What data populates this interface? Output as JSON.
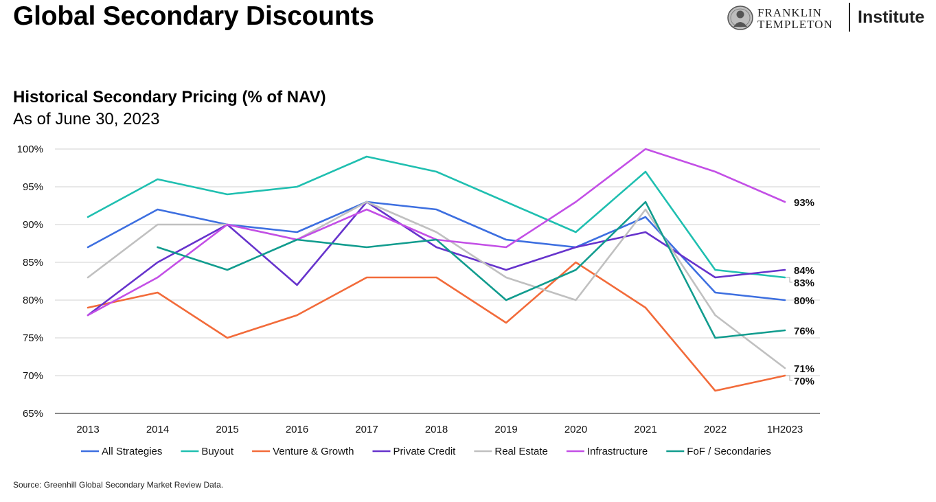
{
  "header": {
    "title": "Global Secondary Discounts",
    "logo": {
      "line1": "FRANKLIN",
      "line2": "TEMPLETON",
      "institute": "Institute"
    }
  },
  "footer": {
    "source": "Source: Greenhill Global Secondary Market Review Data."
  },
  "chart_data": {
    "type": "line",
    "title": "Historical Secondary Pricing (% of NAV)",
    "subtitle": "As of June 30, 2023",
    "xlabel": "",
    "ylabel": "",
    "categories": [
      "2013",
      "2014",
      "2015",
      "2016",
      "2017",
      "2018",
      "2019",
      "2020",
      "2021",
      "2022",
      "1H2023"
    ],
    "ylim": [
      65,
      100
    ],
    "yticks": [
      65,
      70,
      75,
      80,
      85,
      90,
      95,
      100
    ],
    "ytick_labels": [
      "65%",
      "70%",
      "75%",
      "80%",
      "85%",
      "90%",
      "95%",
      "100%"
    ],
    "grid": "horizontal",
    "legend_position": "bottom",
    "series": [
      {
        "name": "All Strategies",
        "color": "#3d6fe0",
        "values": [
          87,
          92,
          90,
          89,
          93,
          92,
          88,
          87,
          91,
          81,
          80
        ]
      },
      {
        "name": "Buyout",
        "color": "#1fbfb0",
        "values": [
          91,
          96,
          94,
          95,
          99,
          97,
          93,
          89,
          97,
          84,
          83
        ]
      },
      {
        "name": "Venture & Growth",
        "color": "#f26b3a",
        "values": [
          79,
          81,
          75,
          78,
          83,
          83,
          77,
          85,
          79,
          68,
          70
        ]
      },
      {
        "name": "Private Credit",
        "color": "#6633cc",
        "values": [
          78,
          85,
          90,
          82,
          93,
          87,
          84,
          87,
          89,
          83,
          84
        ]
      },
      {
        "name": "Real Estate",
        "color": "#c0c0c0",
        "values": [
          83,
          90,
          90,
          88,
          93,
          89,
          83,
          80,
          92,
          78,
          71
        ]
      },
      {
        "name": "Infrastructure",
        "color": "#c34fe6",
        "values": [
          78,
          83,
          90,
          88,
          92,
          88,
          87,
          93,
          100,
          97,
          93
        ]
      },
      {
        "name": "FoF / Secondaries",
        "color": "#119c8e",
        "values": [
          null,
          87,
          84,
          88,
          87,
          88,
          80,
          84,
          93,
          75,
          76
        ]
      }
    ],
    "end_labels": [
      {
        "series": "Infrastructure",
        "text": "93%"
      },
      {
        "series": "Private Credit",
        "text": "84%"
      },
      {
        "series": "Buyout",
        "text": "83%"
      },
      {
        "series": "All Strategies",
        "text": "80%"
      },
      {
        "series": "FoF / Secondaries",
        "text": "76%"
      },
      {
        "series": "Real Estate",
        "text": "71%"
      },
      {
        "series": "Venture & Growth",
        "text": "70%"
      }
    ]
  }
}
